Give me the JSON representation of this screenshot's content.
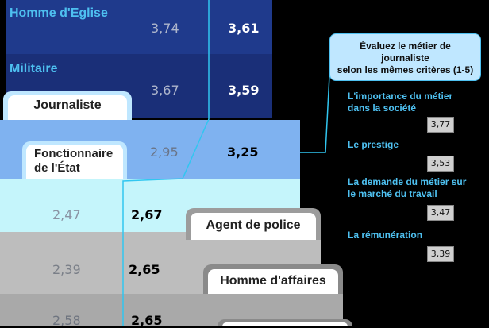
{
  "chart_data": {
    "type": "table",
    "rows": [
      {
        "name": "Homme d'Eglise",
        "value_a": "3,74",
        "value_b": "3,61"
      },
      {
        "name": "Militaire",
        "value_a": "3,67",
        "value_b": "3,59"
      },
      {
        "name": "Journaliste",
        "value_a": "",
        "value_b": ""
      },
      {
        "name_line1": "Fonctionnaire",
        "name_line2": "de l'État",
        "value_a": "2,95",
        "value_b": "3,25"
      },
      {
        "name": "Agent de police",
        "value_a": "2,47",
        "value_b": "2,67"
      },
      {
        "name": "Homme d'affaires",
        "value_a": "2,39",
        "value_b": "2,65"
      },
      {
        "name": "",
        "value_a": "2,58",
        "value_b": "2,65"
      }
    ],
    "callout": {
      "line1": "Évaluez le métier de journaliste",
      "line2": "selon les mêmes critères (1-5)"
    },
    "criteria": [
      {
        "line1": "L'importance du métier",
        "line2": "dans la société",
        "value": "3,77"
      },
      {
        "line1": "Le prestige",
        "line2": "",
        "value": "3,53"
      },
      {
        "line1": "La demande du métier sur",
        "line2": "le marché du travail",
        "value": "3,47"
      },
      {
        "line1": "La rémunération",
        "line2": "",
        "value": "3,39"
      }
    ]
  },
  "colors": {
    "row1": "#1f3a8c",
    "row2": "#1a2f78",
    "row3": "#22349a",
    "row4": "#7fb2f0",
    "row5": "#c5f5fb",
    "row6": "#bdbdbd",
    "row7": "#a9a9a9",
    "accent_line": "#31c6f0"
  }
}
